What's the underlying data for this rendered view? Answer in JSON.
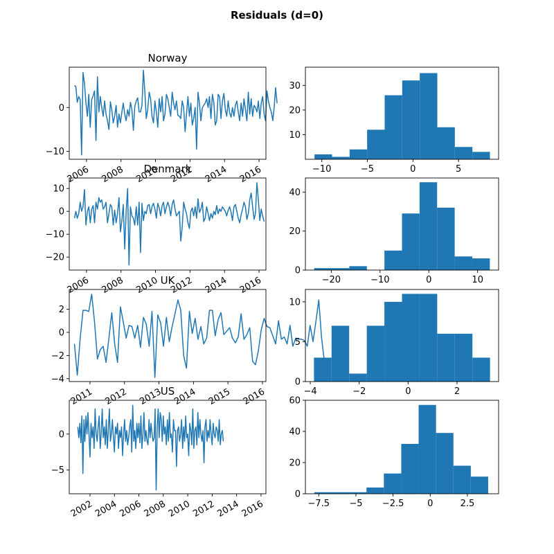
{
  "figure": {
    "title": "Residuals (d=0)"
  },
  "colors": {
    "line": "#1f77b4",
    "bar": "#1f77b4",
    "axis": "#000000"
  },
  "chart_data": [
    {
      "type": "line",
      "country": "Norway",
      "title": "Norway",
      "xlim": [
        2005.0,
        2016.4
      ],
      "ylim": [
        -11.8,
        9.2
      ],
      "xticks": [
        2006,
        2008,
        2010,
        2012,
        2014,
        2016
      ],
      "xtick_rotation": 30,
      "yticks": [
        -10,
        0
      ],
      "x_start": 2005.3,
      "x_step": 0.0833,
      "values": [
        5,
        4.8,
        1.2,
        2.5,
        1.8,
        -10.8,
        8,
        5.5,
        1,
        -2,
        3,
        -4.5,
        1.8,
        2.7,
        3.8,
        -7.5,
        7,
        -1,
        2.5,
        0,
        -2,
        1.5,
        -1.5,
        -3,
        -5,
        1.3,
        -0.5,
        -3.5,
        -2,
        0.5,
        -4.5,
        -1.5,
        -3.5,
        -1,
        1,
        -1.5,
        -3,
        -0.5,
        -2,
        1.2,
        -0.5,
        -5.2,
        0.2,
        1.5,
        2.2,
        -1,
        -1,
        0.5,
        8.5,
        3.5,
        -2.5,
        -0.5,
        3.5,
        2,
        -2,
        -3.5,
        1.5,
        -1,
        -4.5,
        2,
        -1,
        2.5,
        -3,
        -1.5,
        3,
        2,
        0,
        -2,
        3.5,
        1,
        -0.5,
        1.5,
        -1.8,
        -2,
        -2.5,
        1.5,
        0,
        -5.5,
        -1.5,
        2.5,
        -2,
        1,
        -4,
        -2.5,
        0,
        -9.5,
        3.5,
        1,
        -3,
        0,
        0.5,
        1,
        2,
        0,
        2.5,
        -2.5,
        3,
        1.2,
        -4,
        -3,
        3,
        2.5,
        -2.5,
        1.5,
        3.2,
        -0.5,
        -2,
        1.5,
        -1.2,
        -2.2,
        0,
        -2,
        0.5,
        1.5,
        -1,
        -3,
        1,
        -2,
        2,
        -0.5,
        -3,
        3.5,
        -1.5,
        2,
        -2,
        0.5,
        0,
        -1,
        1.5,
        -2.5,
        1,
        2.5,
        -1.5,
        -3,
        3.8,
        1.5,
        0,
        -1,
        -3,
        0,
        4.5,
        1
      ]
    },
    {
      "type": "bar",
      "country": "Norway",
      "xlim": [
        -11.8,
        9.4
      ],
      "ylim": [
        0,
        37.4
      ],
      "xticks": [
        -10,
        -5,
        0,
        5
      ],
      "yticks": [
        10,
        20,
        30
      ],
      "bin_start": -10.8,
      "bin_width": 1.925,
      "values": [
        2,
        1,
        4,
        12,
        26,
        32,
        35,
        13,
        5,
        3
      ]
    },
    {
      "type": "line",
      "country": "Denmark",
      "title": "Denmark",
      "xlim": [
        2005.0,
        2016.4
      ],
      "ylim": [
        -25.7,
        14.6
      ],
      "xticks": [
        2006,
        2008,
        2010,
        2012,
        2014,
        2016
      ],
      "xtick_rotation": 30,
      "yticks": [
        -20,
        -10,
        0,
        10
      ],
      "x_start": 2005.3,
      "x_step": 0.0833,
      "values": [
        -3,
        0,
        -3,
        -1,
        4,
        0,
        2,
        9.5,
        -6,
        0,
        2,
        -5,
        1,
        2.5,
        -5,
        4,
        1,
        6,
        4,
        5,
        1,
        2,
        4,
        -5,
        -1,
        3,
        2,
        -6,
        0.5,
        -5,
        -1,
        6,
        -9,
        -4,
        3,
        -16.5,
        0,
        10,
        -23.5,
        2,
        -2,
        -3,
        -6,
        2,
        -6,
        4,
        -18,
        3.5,
        -4,
        0,
        -1,
        2.5,
        3,
        -1,
        2,
        3.5,
        1,
        -3,
        3.5,
        1.5,
        -2,
        2.5,
        4,
        -1,
        2,
        4,
        2,
        -2,
        3,
        5,
        1,
        -2,
        -1,
        0,
        -13,
        -7,
        4,
        1,
        -1,
        -5,
        -7.5,
        0,
        1.5,
        -2,
        2,
        -3,
        5.5,
        -0.5,
        1,
        4,
        -4.5,
        -3,
        2,
        -1,
        -4,
        -1,
        -3,
        0,
        -1.5,
        2.5,
        -1,
        1,
        0,
        2,
        1,
        0,
        -2,
        0.5,
        2,
        -0.5,
        -4,
        2,
        3,
        0,
        -3,
        -5,
        -1.5,
        1,
        4,
        2,
        -3.5,
        -1,
        5,
        8,
        2,
        -3.5,
        -1,
        12.5,
        5,
        -4,
        1,
        -2,
        -4.5
      ]
    },
    {
      "type": "bar",
      "country": "Denmark",
      "xlim": [
        -25.3,
        14.3
      ],
      "ylim": [
        0,
        47.2
      ],
      "xticks": [
        -20,
        -10,
        0,
        10
      ],
      "yticks": [
        0,
        20,
        40
      ],
      "bin_start": -23.5,
      "bin_width": 3.6,
      "values": [
        1,
        1,
        2,
        0,
        10,
        29,
        45,
        32,
        7,
        6
      ]
    },
    {
      "type": "line",
      "country": "UK",
      "title": "UK",
      "xlim": [
        2010.4,
        2016.1
      ],
      "ylim": [
        -4.25,
        3.7
      ],
      "xticks": [
        2011,
        2012,
        2013,
        2014,
        2015,
        2016
      ],
      "xtick_rotation": 30,
      "yticks": [
        -4,
        -2,
        0,
        2
      ],
      "x_start": 2010.55,
      "x_step": 0.0833,
      "values": [
        -1,
        -3.7,
        -0.5,
        1.9,
        1.9,
        1.8,
        3.3,
        0.9,
        -2.3,
        -1.5,
        -1.2,
        -2.6,
        -0.5,
        1.7,
        -1,
        -2.6,
        2.2,
        0.9,
        -0.5,
        0.6,
        0.5,
        -0.5,
        0.6,
        -1.3,
        1.3,
        0.7,
        -1.2,
        1.8,
        -3.9,
        1.5,
        0.8,
        -1.2,
        1.3,
        -0.8,
        0.5,
        1.6,
        2.8,
        1.9,
        -2,
        -3.1,
        1.8,
        -0.1,
        1.2,
        -0.6,
        0.5,
        -1,
        -0.5,
        1.9,
        1.9,
        -0.3,
        1.1,
        1.7,
        -0.2,
        0.1,
        0.4,
        -0.5,
        -0.9,
        -0.4,
        1.6,
        -0.6,
        -0.2,
        0.4,
        -2.5,
        -2.8,
        -1.6,
        0.2,
        1.2,
        0.5,
        0.4,
        -0.3,
        -1,
        1,
        -0.6,
        -0.4,
        -1,
        0.6,
        -1.2,
        -0.5,
        -0.6,
        -0.6,
        -0.7,
        -1.2,
        0.6,
        -0.8,
        0.9,
        2.8,
        -0.5,
        -2.6
      ]
    },
    {
      "type": "bar",
      "country": "UK",
      "xlim": [
        -4.2,
        3.7
      ],
      "ylim": [
        0,
        11.55
      ],
      "xticks": [
        -4,
        -2,
        0,
        2
      ],
      "yticks": [
        0,
        5,
        10
      ],
      "bin_start": -3.85,
      "bin_width": 0.72,
      "values": [
        3,
        7,
        1,
        7,
        10,
        11,
        11,
        6,
        6,
        3
      ]
    },
    {
      "type": "line",
      "country": "US",
      "title": "US",
      "xlim": [
        2000.3,
        2016.4
      ],
      "ylim": [
        -8.3,
        4.7
      ],
      "xticks": [
        2002,
        2004,
        2006,
        2008,
        2010,
        2012,
        2014,
        2016
      ],
      "xtick_rotation": 30,
      "yticks": [
        -5,
        0
      ],
      "x_start": 2001.0,
      "x_step": 0.0833,
      "values": [
        1,
        -0.5,
        1.5,
        -1.2,
        2.5,
        -5.5,
        2,
        -1,
        2.5,
        0,
        3,
        0,
        -3.2,
        1.5,
        -0.5,
        1,
        -2,
        3.5,
        0,
        -1,
        1,
        2.5,
        -2,
        0,
        3.5,
        -0.5,
        1,
        -1.5,
        2,
        -2,
        0.5,
        3.5,
        -1,
        0,
        2,
        -0.5,
        -2.5,
        1,
        0,
        1.5,
        -2,
        0.5,
        -0.5,
        1,
        -3,
        0,
        2,
        -1,
        0.5,
        -1.5,
        -0.5,
        1,
        2,
        -2.5,
        4,
        -1,
        0.5,
        -2,
        1.5,
        -0.5,
        1.5,
        -1.2,
        2.5,
        -2,
        0,
        3,
        -1,
        0.5,
        -1,
        -1.5,
        2,
        -0.5,
        1.5,
        0,
        -1,
        -0.5,
        3.5,
        -7.8,
        1,
        3.5,
        -0.5,
        3,
        2,
        -1,
        2.5,
        0,
        1,
        -1.5,
        2,
        -1,
        3,
        -0.5,
        0,
        -2.5,
        2,
        0.5,
        0.5,
        -4.5,
        0.5,
        1,
        -1,
        0,
        2,
        -2,
        1,
        -1,
        2.5,
        -0.5,
        0,
        -3,
        1.5,
        0.5,
        -1.5,
        3.5,
        -2,
        0.5,
        1,
        -1.5,
        3,
        -0.5,
        2,
        0,
        -1,
        0.5,
        -4,
        1,
        2,
        -1,
        0.5,
        -0.5,
        2,
        0,
        -1.5,
        1.5,
        0,
        -0.5,
        1,
        0.5,
        -1,
        2,
        -1.5,
        0,
        0.5,
        -1
      ]
    },
    {
      "type": "bar",
      "country": "US",
      "xlim": [
        -8.4,
        4.6
      ],
      "ylim": [
        0,
        60
      ],
      "xticks": [
        -7.5,
        -5.0,
        -2.5,
        0.0,
        2.5
      ],
      "yticks": [
        0,
        20,
        40,
        60
      ],
      "bin_start": -7.8,
      "bin_width": 1.17,
      "values": [
        1,
        1,
        1,
        4,
        13,
        32,
        57,
        39,
        18,
        11
      ]
    }
  ]
}
